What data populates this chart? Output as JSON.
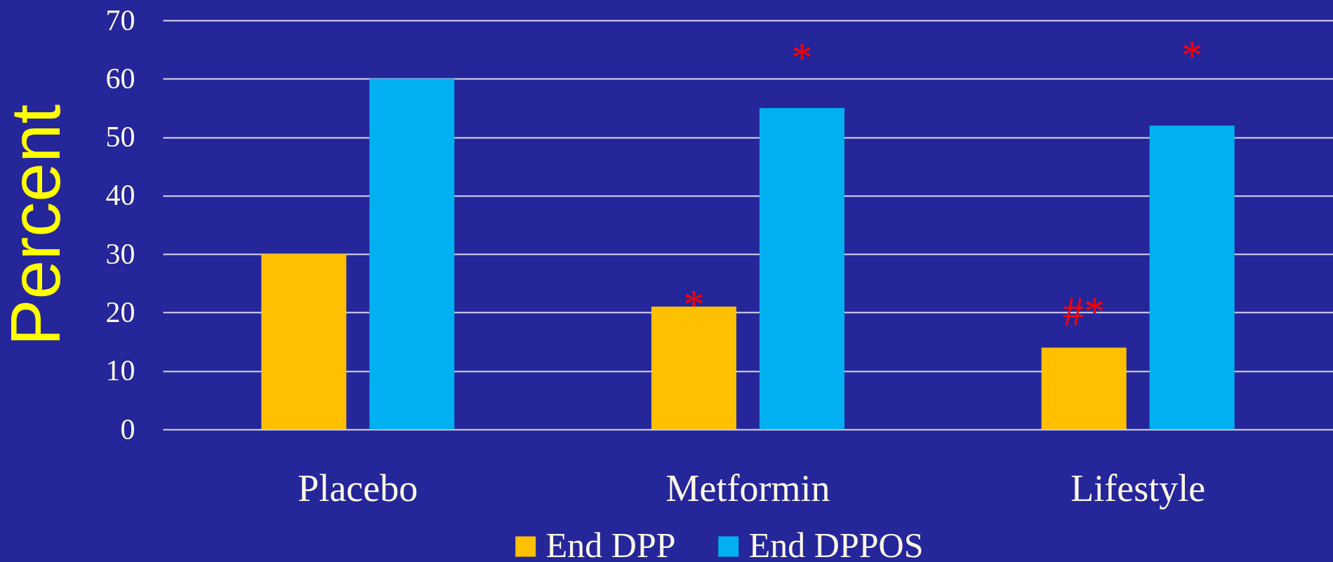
{
  "chart_data": {
    "type": "bar",
    "ylabel": "Percent",
    "categories": [
      "Placebo",
      "Metformin",
      "Lifestyle"
    ],
    "series": [
      {
        "name": "End DPP",
        "color": "#ffc000",
        "values": [
          30,
          21,
          14
        ]
      },
      {
        "name": "End DPPOS",
        "color": "#00b0f0",
        "values": [
          60,
          55,
          52
        ]
      }
    ],
    "ylim": [
      0,
      70
    ],
    "yticks": [
      0,
      10,
      20,
      30,
      40,
      50,
      60,
      70
    ],
    "grid": "y",
    "legend": "bottom",
    "annotations": [
      "*",
      "*",
      "#*",
      "*"
    ]
  }
}
